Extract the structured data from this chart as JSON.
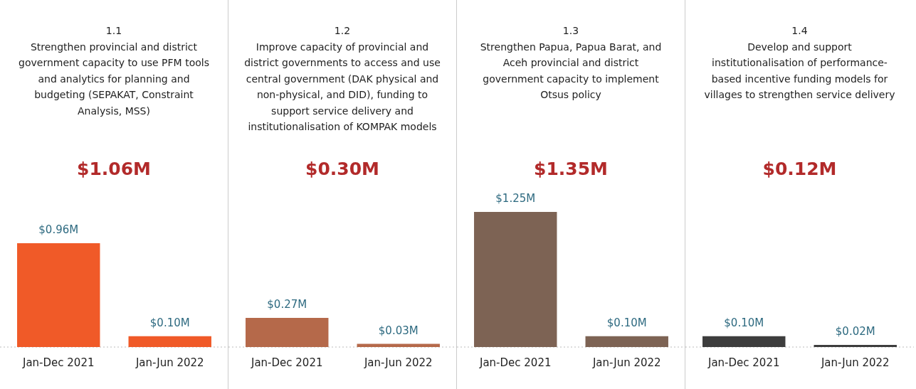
{
  "chart_data": [
    {
      "type": "bar",
      "title": "1.1",
      "subtitle": "Strengthen provincial and district government capacity to use PFM tools and analytics for planning and budgeting (SEPAKAT, Constraint Analysis, MSS)",
      "annotations": [
        "$1.06M"
      ],
      "categories": [
        "Jan-Dec 2021",
        "Jan-Jun 2022"
      ],
      "values": [
        0.96,
        0.1
      ],
      "value_labels": [
        "$0.96M",
        "$0.10M"
      ],
      "color": "#f05a28",
      "tick_labels": "x",
      "grid": false,
      "legend": false
    },
    {
      "type": "bar",
      "title": "1.2",
      "subtitle": "Improve capacity of provincial and district governments to access and use central government (DAK physical and non-physical, and DID), funding to support service delivery and institutionalisation of KOMPAK models",
      "annotations": [
        "$0.30M"
      ],
      "categories": [
        "Jan-Dec 2021",
        "Jan-Jun 2022"
      ],
      "values": [
        0.27,
        0.03
      ],
      "value_labels": [
        "$0.27M",
        "$0.03M"
      ],
      "color": "#b5694a",
      "tick_labels": "x",
      "grid": false,
      "legend": false
    },
    {
      "type": "bar",
      "title": "1.3",
      "subtitle": "Strengthen Papua, Papua Barat, and Aceh provincial and district government capacity to implement Otsus policy",
      "annotations": [
        "$1.35M"
      ],
      "categories": [
        "Jan-Dec 2021",
        "Jan-Jun 2022"
      ],
      "values": [
        1.25,
        0.1
      ],
      "value_labels": [
        "$1.25M",
        "$0.10M"
      ],
      "color": "#7d6354",
      "tick_labels": "x",
      "grid": false,
      "legend": false
    },
    {
      "type": "bar",
      "title": "1.4",
      "subtitle": "Develop and support institutionalisation of performance-based incentive funding models for villages to strengthen service delivery",
      "annotations": [
        "$0.12M"
      ],
      "categories": [
        "Jan-Dec 2021",
        "Jan-Jun 2022"
      ],
      "values": [
        0.1,
        0.02
      ],
      "value_labels": [
        "$0.10M",
        "$0.02M"
      ],
      "color": "#3d3d3d",
      "tick_labels": "x",
      "grid": false,
      "legend": false
    }
  ]
}
